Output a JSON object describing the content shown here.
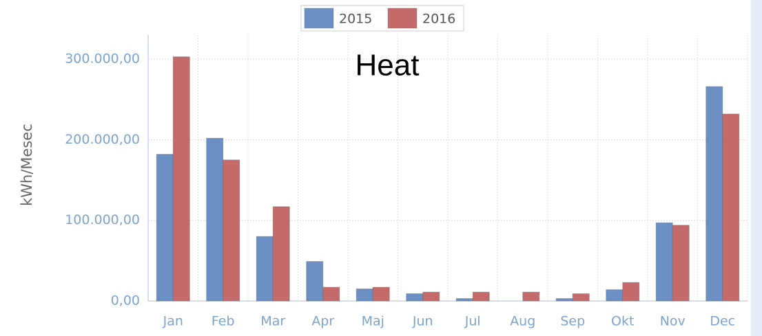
{
  "chart_data": {
    "type": "bar",
    "title": "Heat",
    "y_label": "kWh/Mesec",
    "categories": [
      "Jan",
      "Feb",
      "Mar",
      "Apr",
      "Maj",
      "Jun",
      "Jul",
      "Aug",
      "Sep",
      "Okt",
      "Nov",
      "Dec"
    ],
    "series": [
      {
        "name": "2015",
        "color": "#6b8fc2",
        "values": [
          182000,
          202000,
          80000,
          49000,
          15000,
          9000,
          3000,
          0,
          3000,
          14000,
          97000,
          266000
        ]
      },
      {
        "name": "2016",
        "color": "#c46a6a",
        "values": [
          303000,
          175000,
          117000,
          17000,
          17000,
          11000,
          11000,
          11000,
          9000,
          23000,
          94000,
          232000
        ]
      }
    ],
    "ylim": [
      0,
      330000
    ],
    "yticks": [
      {
        "value": 0,
        "label": "0,00"
      },
      {
        "value": 100000,
        "label": "100.000,00"
      },
      {
        "value": 200000,
        "label": "200.000,00"
      },
      {
        "value": 300000,
        "label": "300.000,00"
      }
    ],
    "grid": true,
    "legend": "top"
  }
}
